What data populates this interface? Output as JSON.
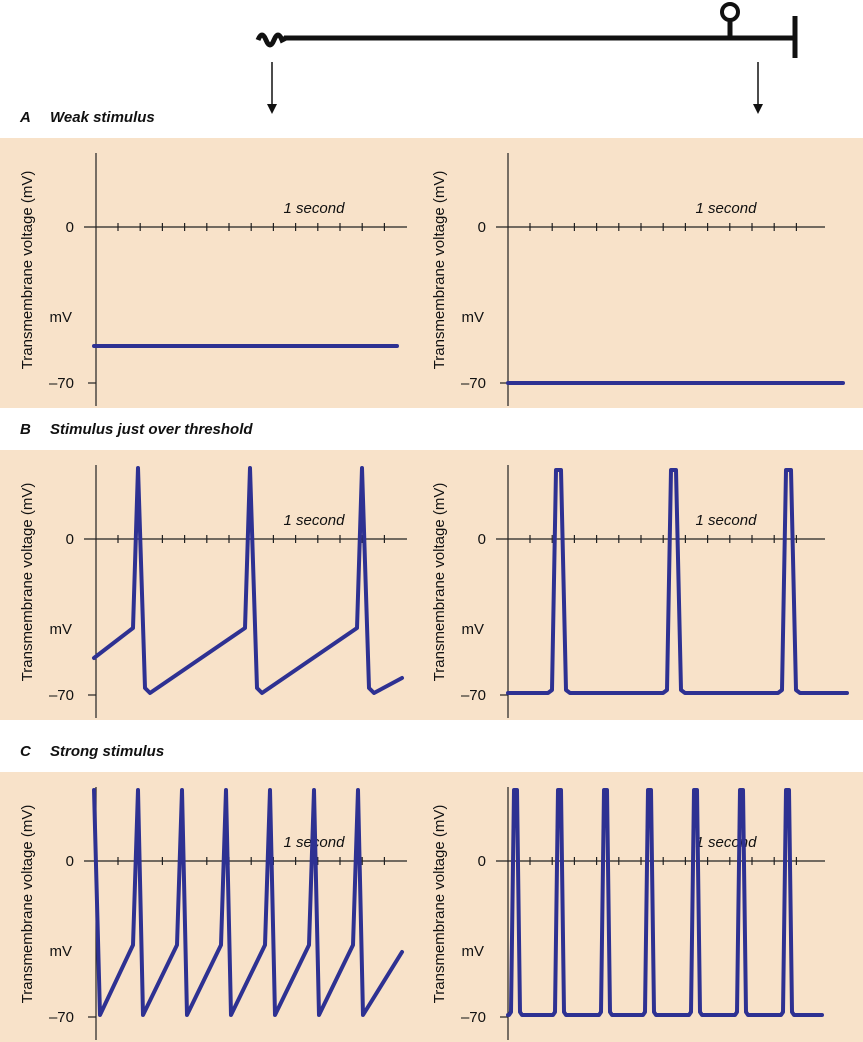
{
  "panels": [
    {
      "letter": "A",
      "title": "Weak stimulus",
      "plots": [
        {
          "y_label": "Transmembrane voltage (mV)",
          "zero": "0",
          "unit": "mV",
          "min": "–70",
          "time": "1 second"
        },
        {
          "y_label": "Transmembrane voltage (mV)",
          "zero": "0",
          "unit": "mV",
          "min": "–70",
          "time": "1 second"
        }
      ]
    },
    {
      "letter": "B",
      "title": "Stimulus just over threshold",
      "plots": [
        {
          "y_label": "Transmembrane voltage (mV)",
          "zero": "0",
          "unit": "mV",
          "min": "–70",
          "time": "1 second"
        },
        {
          "y_label": "Transmembrane voltage (mV)",
          "zero": "0",
          "unit": "mV",
          "min": "–70",
          "time": "1 second"
        }
      ]
    },
    {
      "letter": "C",
      "title": "Strong stimulus",
      "plots": [
        {
          "y_label": "Transmembrane voltage (mV)",
          "zero": "0",
          "unit": "mV",
          "min": "–70",
          "time": "1 second"
        },
        {
          "y_label": "Transmembrane voltage (mV)",
          "zero": "0",
          "unit": "mV",
          "min": "–70",
          "time": "1 second"
        }
      ]
    }
  ]
}
